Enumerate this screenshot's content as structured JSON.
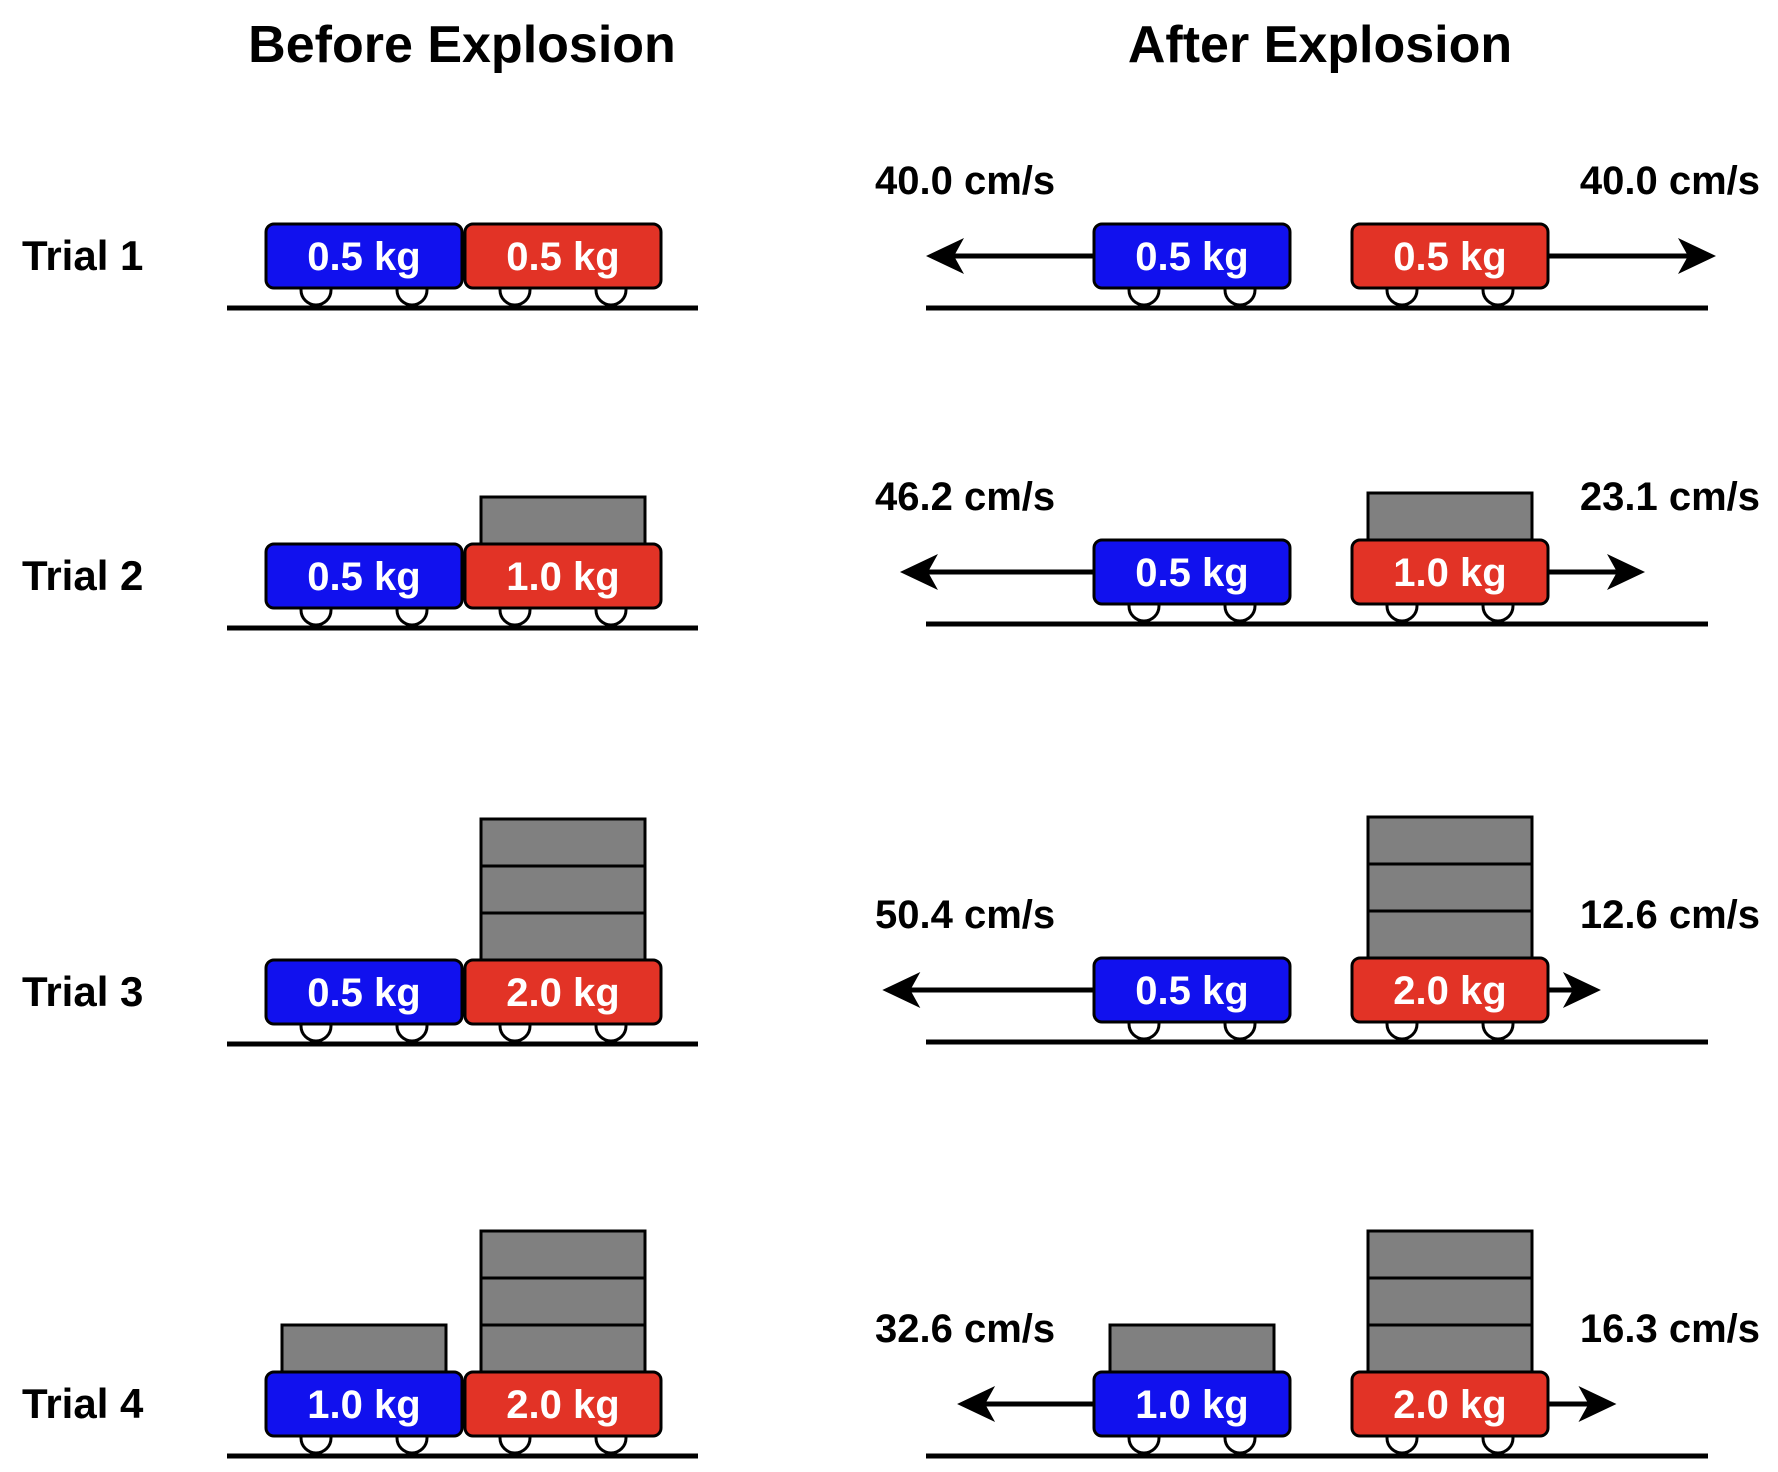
{
  "headers": {
    "before": "Before Explosion",
    "after": "After Explosion"
  },
  "colors": {
    "left_cart": "#1111ee",
    "right_cart": "#e23326",
    "weight_block": "#808080",
    "outline": "#000000",
    "wheel": "#ffffff"
  },
  "trials": [
    {
      "label": "Trial 1",
      "left_mass": "0.5 kg",
      "right_mass": "0.5 kg",
      "left_weights": 0,
      "right_weights": 0,
      "left_velocity": "40.0 cm/s",
      "right_velocity": "40.0 cm/s"
    },
    {
      "label": "Trial 2",
      "left_mass": "0.5 kg",
      "right_mass": "1.0 kg",
      "left_weights": 0,
      "right_weights": 1,
      "left_velocity": "46.2 cm/s",
      "right_velocity": "23.1 cm/s"
    },
    {
      "label": "Trial 3",
      "left_mass": "0.5 kg",
      "right_mass": "2.0 kg",
      "left_weights": 0,
      "right_weights": 3,
      "left_velocity": "50.4 cm/s",
      "right_velocity": "12.6 cm/s"
    },
    {
      "label": "Trial 4",
      "left_mass": "1.0 kg",
      "right_mass": "2.0 kg",
      "left_weights": 1,
      "right_weights": 3,
      "left_velocity": "32.6 cm/s",
      "right_velocity": "16.3 cm/s"
    }
  ]
}
